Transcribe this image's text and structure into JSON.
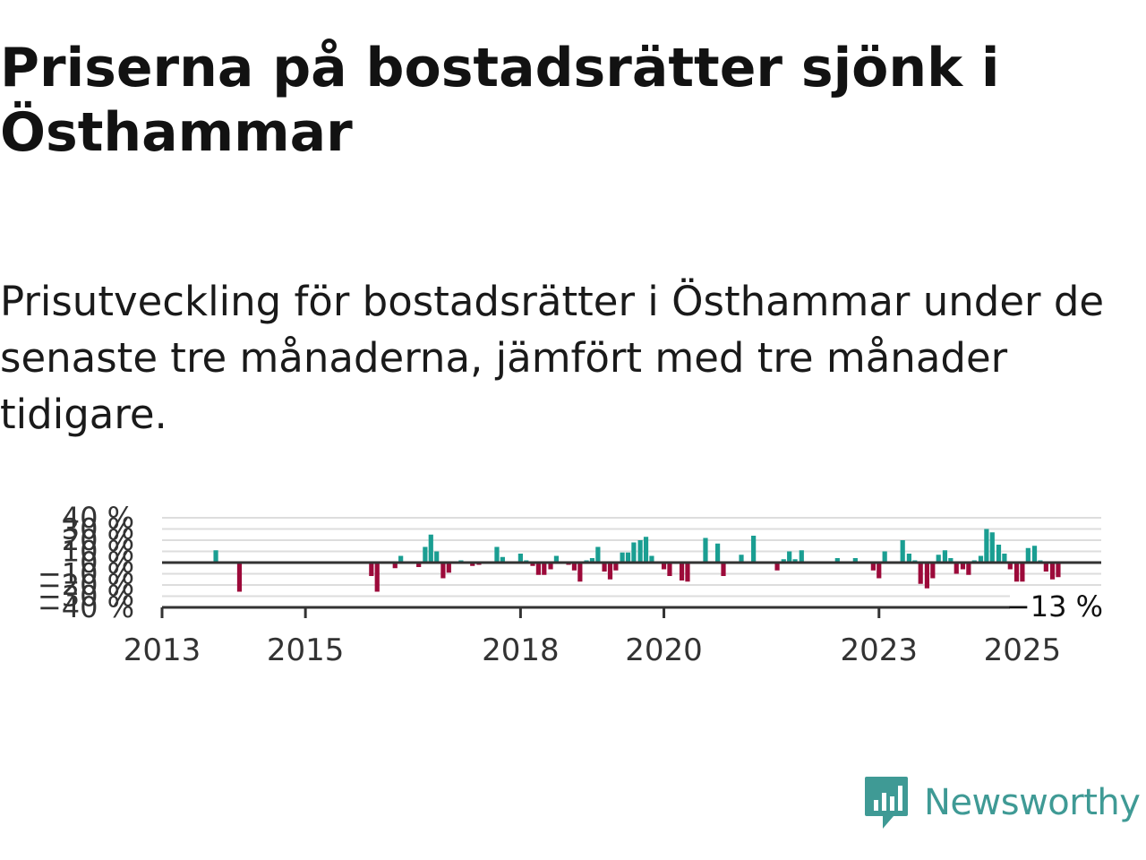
{
  "title": "Priserna på bostadsrätter sjönk i Östhammar",
  "subtitle": "Prisutveckling för bostadsrätter i Östhammar under de senaste tre månaderna, jämfört med tre månader tidigare.",
  "brand": {
    "name": "Newsworthy",
    "icon": "newsworthy-logo-icon",
    "color": "#3f9a95"
  },
  "chart_data": {
    "type": "bar",
    "title": "",
    "xlabel": "",
    "ylabel": "",
    "yunit": "%",
    "ylim": [
      -40,
      40
    ],
    "yticks": [
      40,
      30,
      20,
      10,
      0,
      -10,
      -20,
      -30,
      -40
    ],
    "ytick_labels": [
      "40 %",
      "30 %",
      "20 %",
      "10 %",
      "0 %",
      "−10 %",
      "−20 %",
      "−30 %",
      "−40 %"
    ],
    "xlim": [
      2013.0,
      2026.1
    ],
    "xticks": [
      2013,
      2015,
      2018,
      2020,
      2023,
      2025
    ],
    "xtick_labels": [
      "2013",
      "2015",
      "2018",
      "2020",
      "2023",
      "2025"
    ],
    "colors": {
      "positive": "#1a9e92",
      "negative": "#9c0a3a",
      "zero_line": "#333333",
      "grid": "#dddddd"
    },
    "grid": true,
    "last_value_label": "−13 %",
    "series": [
      {
        "x": [
          2013.75,
          2014.08,
          2015.92,
          2016.0,
          2016.25,
          2016.33,
          2016.58,
          2016.67,
          2016.75,
          2016.83,
          2016.92,
          2017.0,
          2017.17,
          2017.33,
          2017.42,
          2017.67,
          2017.75,
          2018.0,
          2018.08,
          2018.17,
          2018.25,
          2018.33,
          2018.42,
          2018.5,
          2018.67,
          2018.75,
          2018.83,
          2018.92,
          2019.0,
          2019.08,
          2019.17,
          2019.25,
          2019.33,
          2019.42,
          2019.5,
          2019.58,
          2019.67,
          2019.75,
          2019.83,
          2020.0,
          2020.08,
          2020.25,
          2020.33,
          2020.58,
          2020.75,
          2020.83,
          2021.08,
          2021.25,
          2021.58,
          2021.67,
          2021.75,
          2021.83,
          2021.92,
          2022.42,
          2022.67,
          2022.92,
          2023.0,
          2023.08,
          2023.33,
          2023.42,
          2023.5,
          2023.58,
          2023.67,
          2023.75,
          2023.83,
          2023.92,
          2024.0,
          2024.08,
          2024.17,
          2024.25,
          2024.33,
          2024.42,
          2024.5,
          2024.58,
          2024.67,
          2024.75,
          2024.83,
          2024.92,
          2025.0,
          2025.08,
          2025.17,
          2025.25,
          2025.33,
          2025.42,
          2025.5
        ],
        "values": [
          11,
          -26,
          -12,
          -26,
          -5,
          6,
          -4,
          14,
          25,
          10,
          -14,
          -9,
          2,
          -3,
          -2,
          14,
          5,
          8,
          2,
          -3,
          -11,
          -11,
          -6,
          6,
          -2,
          -7,
          -17,
          2,
          4,
          14,
          -8,
          -15,
          -7,
          9,
          9,
          18,
          20,
          23,
          6,
          -6,
          -12,
          -16,
          -17,
          22,
          17,
          -12,
          7,
          24,
          -7,
          3,
          10,
          3,
          11,
          4,
          4,
          -7,
          -14,
          10,
          20,
          8,
          2,
          -19,
          -23,
          -14,
          7,
          11,
          4,
          -10,
          -6,
          -11,
          2,
          6,
          30,
          27,
          16,
          8,
          -6,
          -17,
          -17,
          13,
          15,
          2,
          -8,
          -15,
          -13
        ]
      }
    ]
  }
}
